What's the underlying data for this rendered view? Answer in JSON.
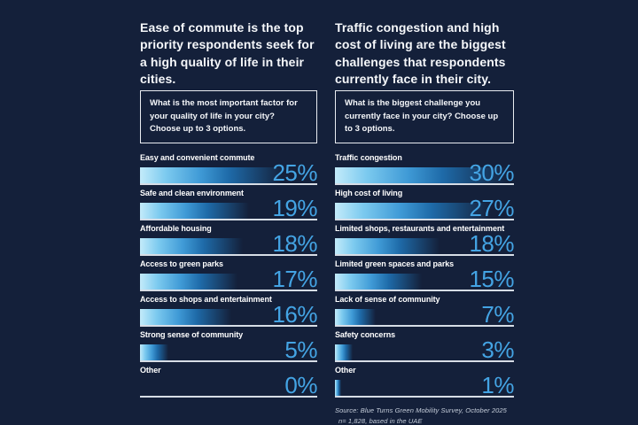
{
  "background_color": "#14203A",
  "accent_blue": "#44A4E4",
  "bar_gradient_colors": [
    "#C3EBFA",
    "#3F9AD6",
    "#1E6AA8",
    "transparent"
  ],
  "underline_color": "#D7DDE6",
  "text_color": "#F5F7FA",
  "source": {
    "line1": "Source: Blue Turns Green Mobility Survey, October 2025",
    "line2": "n= 1,828, based in the UAE"
  },
  "chart_data": [
    {
      "type": "bar",
      "orientation": "horizontal",
      "title": "Ease of commute is the top priority respondents seek for a high quality of life in their cities.",
      "question": "What  is the most important factor for your quality of life in your city? Choose up to 3 options.",
      "categories": [
        "Easy and convenient commute",
        "Safe and clean environment",
        "Affordable housing",
        "Access to green parks",
        "Access to shops and entertainment",
        "Strong sense of community",
        "Other"
      ],
      "values": [
        25,
        19,
        18,
        17,
        16,
        5,
        0
      ],
      "value_suffix": "%",
      "xlim": [
        0,
        30
      ],
      "grid": false,
      "legend": "none"
    },
    {
      "type": "bar",
      "orientation": "horizontal",
      "title": "Traffic congestion and high cost of living are the biggest challenges that respondents currently face in their city.",
      "question": "What  is  the biggest challenge you currently face in your city? Choose up to 3 options.",
      "categories": [
        "Traffic congestion",
        "High cost of living",
        "Limited shops, restaurants and entertainment",
        "Limited green spaces and parks",
        "Lack of sense of community",
        "Safety concerns",
        "Other"
      ],
      "values": [
        30,
        27,
        18,
        15,
        7,
        3,
        1
      ],
      "value_suffix": "%",
      "xlim": [
        0,
        30
      ],
      "grid": false,
      "legend": "none"
    }
  ]
}
